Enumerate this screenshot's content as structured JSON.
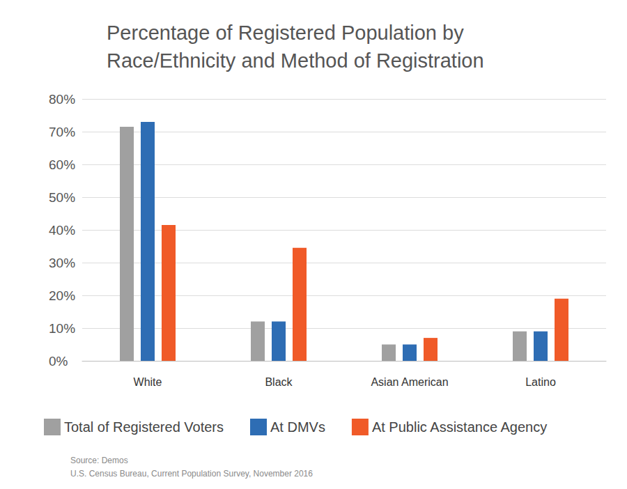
{
  "chart_data": {
    "type": "bar",
    "title": "Percentage of Registered Population by\nRace/Ethnicity and Method of Registration",
    "source": [
      "Source: Demos",
      "U.S. Census Bureau, Current Population Survey, November 2016"
    ],
    "categories": [
      "White",
      "Black",
      "Asian American",
      "Latino"
    ],
    "series": [
      {
        "name": "Total of Registered Voters",
        "color": "#a0a0a0",
        "values": [
          71.5,
          12,
          5,
          9
        ]
      },
      {
        "name": "At DMVs",
        "color": "#2e6db4",
        "values": [
          73,
          12,
          5,
          9
        ]
      },
      {
        "name": "At Public Assistance Agency",
        "color": "#f05a28",
        "values": [
          41.5,
          34.5,
          7,
          19
        ]
      }
    ],
    "ylim": [
      0,
      80
    ],
    "yticks": [
      {
        "value": 0,
        "label": "0%"
      },
      {
        "value": 10,
        "label": "10%"
      },
      {
        "value": 20,
        "label": "20%"
      },
      {
        "value": 30,
        "label": "30%"
      },
      {
        "value": 40,
        "label": "40%"
      },
      {
        "value": 50,
        "label": "50%"
      },
      {
        "value": 60,
        "label": "60%"
      },
      {
        "value": 70,
        "label": "70%"
      },
      {
        "value": 80,
        "label": "80%"
      }
    ],
    "grid": true,
    "legend": "bottom"
  }
}
